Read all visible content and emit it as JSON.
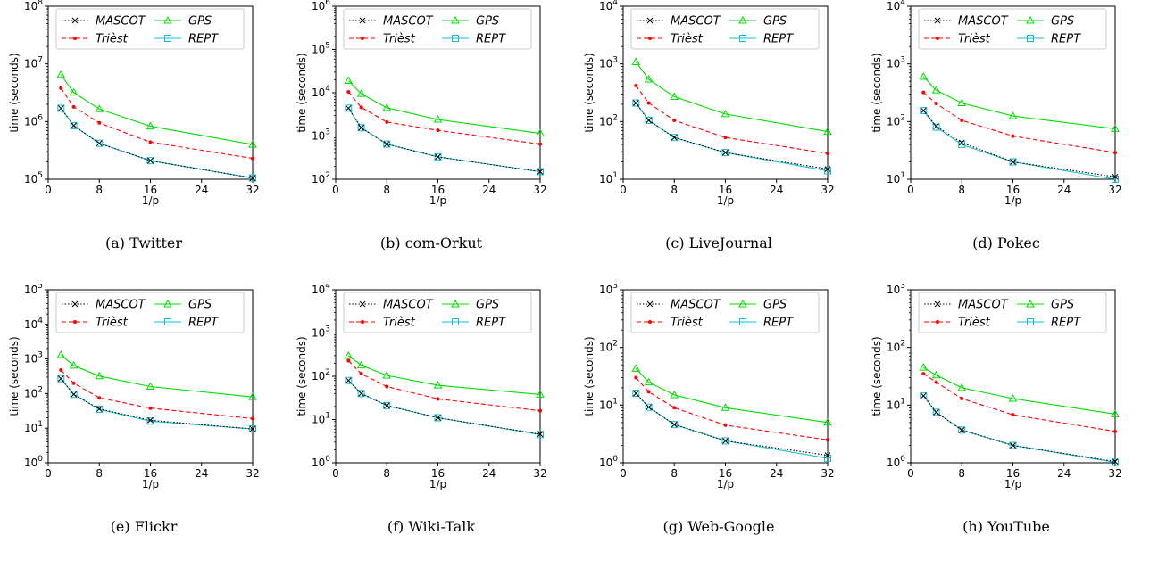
{
  "shared": {
    "xlabel": "1/p",
    "ylabel": "time (seconds)",
    "x": [
      2,
      4,
      8,
      16,
      32
    ],
    "xticks": [
      0,
      8,
      16,
      24,
      32
    ],
    "xlim": [
      0,
      32
    ],
    "yscale": "log",
    "legend_position": "top",
    "colors": {
      "MASCOT": "#000000",
      "Triest": "#ff0000",
      "GPS": "#00dd00",
      "REPT": "#17becf"
    }
  },
  "chart_data": [
    {
      "type": "line",
      "caption": "(a) Twitter",
      "x": [
        2,
        4,
        8,
        16,
        32
      ],
      "ylim_exp": [
        5,
        8
      ],
      "series": [
        {
          "name": "MASCOT",
          "values": [
            1700000.0,
            850000.0,
            420000.0,
            210000.0,
            105000.0
          ]
        },
        {
          "name": "Trièst",
          "values": [
            3800000.0,
            1800000.0,
            950000.0,
            440000.0,
            230000.0
          ]
        },
        {
          "name": "GPS",
          "values": [
            6500000.0,
            3200000.0,
            1650000.0,
            830000.0,
            400000.0
          ]
        },
        {
          "name": "REPT",
          "values": [
            1700000.0,
            850000.0,
            420000.0,
            210000.0,
            105000.0
          ]
        }
      ]
    },
    {
      "type": "line",
      "caption": "(b) com-Orkut",
      "x": [
        2,
        4,
        8,
        16,
        32
      ],
      "ylim_exp": [
        2,
        6
      ],
      "series": [
        {
          "name": "MASCOT",
          "values": [
            4400,
            1550,
            650,
            330,
            150
          ]
        },
        {
          "name": "Trièst",
          "values": [
            10500,
            4600,
            2100,
            1350,
            650
          ]
        },
        {
          "name": "GPS",
          "values": [
            19000,
            9500,
            4500,
            2400,
            1150
          ]
        },
        {
          "name": "REPT",
          "values": [
            4400,
            1550,
            650,
            330,
            150
          ]
        }
      ]
    },
    {
      "type": "line",
      "caption": "(c) LiveJournal",
      "x": [
        2,
        4,
        8,
        16,
        32
      ],
      "ylim_exp": [
        1,
        4
      ],
      "series": [
        {
          "name": "MASCOT",
          "values": [
            210,
            105,
            53,
            29,
            15
          ]
        },
        {
          "name": "Trièst",
          "values": [
            420,
            210,
            105,
            53,
            28
          ]
        },
        {
          "name": "GPS",
          "values": [
            1080,
            540,
            270,
            135,
            67
          ]
        },
        {
          "name": "REPT",
          "values": [
            210,
            105,
            53,
            29,
            14
          ]
        }
      ]
    },
    {
      "type": "line",
      "caption": "(d) Pokec",
      "x": [
        2,
        4,
        8,
        16,
        32
      ],
      "ylim_exp": [
        1,
        4
      ],
      "series": [
        {
          "name": "MASCOT",
          "values": [
            155,
            83,
            43,
            20,
            11
          ]
        },
        {
          "name": "Trièst",
          "values": [
            320,
            205,
            105,
            56,
            29
          ]
        },
        {
          "name": "GPS",
          "values": [
            600,
            350,
            210,
            125,
            75
          ]
        },
        {
          "name": "REPT",
          "values": [
            155,
            80,
            40,
            20,
            10
          ]
        }
      ]
    },
    {
      "type": "line",
      "caption": "(e) Flickr",
      "x": [
        2,
        4,
        8,
        16,
        32
      ],
      "ylim_exp": [
        0,
        5
      ],
      "series": [
        {
          "name": "MASCOT",
          "values": [
            270,
            95,
            36,
            17,
            9.5
          ]
        },
        {
          "name": "Trièst",
          "values": [
            480,
            200,
            75,
            38,
            19
          ]
        },
        {
          "name": "GPS",
          "values": [
            1300,
            650,
            320,
            160,
            80
          ]
        },
        {
          "name": "REPT",
          "values": [
            270,
            95,
            35,
            16,
            9.5
          ]
        }
      ]
    },
    {
      "type": "line",
      "caption": "(f) Wiki-Talk",
      "x": [
        2,
        4,
        8,
        16,
        32
      ],
      "ylim_exp": [
        0,
        4
      ],
      "series": [
        {
          "name": "MASCOT",
          "values": [
            80,
            40,
            21,
            11,
            4.6
          ]
        },
        {
          "name": "Trièst",
          "values": [
            230,
            115,
            58,
            30,
            16
          ]
        },
        {
          "name": "GPS",
          "values": [
            300,
            180,
            105,
            62,
            38
          ]
        },
        {
          "name": "REPT",
          "values": [
            80,
            40,
            21,
            11,
            4.5
          ]
        }
      ]
    },
    {
      "type": "line",
      "caption": "(g) Web-Google",
      "x": [
        2,
        4,
        8,
        16,
        32
      ],
      "ylim_exp": [
        0,
        3
      ],
      "series": [
        {
          "name": "MASCOT",
          "values": [
            16,
            9.2,
            4.6,
            2.4,
            1.35
          ]
        },
        {
          "name": "Trièst",
          "values": [
            30,
            17,
            9,
            4.5,
            2.5
          ]
        },
        {
          "name": "GPS",
          "values": [
            43,
            25,
            15,
            9,
            5
          ]
        },
        {
          "name": "REPT",
          "values": [
            16,
            9.2,
            4.6,
            2.4,
            1.2
          ]
        }
      ]
    },
    {
      "type": "line",
      "caption": "(h) YouTube",
      "x": [
        2,
        4,
        8,
        16,
        32
      ],
      "ylim_exp": [
        0,
        3
      ],
      "series": [
        {
          "name": "MASCOT",
          "values": [
            14.5,
            7.5,
            3.7,
            2.0,
            1.05
          ]
        },
        {
          "name": "Trièst",
          "values": [
            35,
            25,
            13,
            6.8,
            3.5
          ]
        },
        {
          "name": "GPS",
          "values": [
            45,
            33,
            20,
            13,
            7
          ]
        },
        {
          "name": "REPT",
          "values": [
            14.5,
            7.5,
            3.7,
            2.0,
            1.02
          ]
        }
      ]
    }
  ]
}
